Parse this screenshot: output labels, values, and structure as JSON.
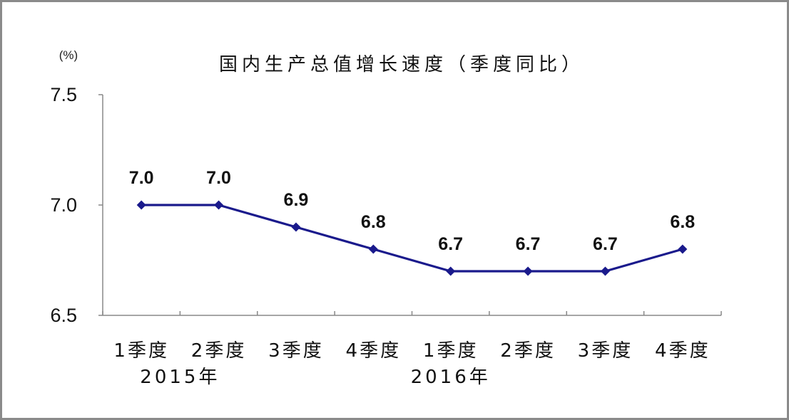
{
  "chart_data": {
    "type": "line",
    "title": "国内生产总值增长速度（季度同比）",
    "unit_label": "(%)",
    "categories": [
      "1季度",
      "2季度",
      "3季度",
      "4季度",
      "1季度",
      "2季度",
      "3季度",
      "4季度"
    ],
    "groups": [
      {
        "label": "2015年",
        "start": 0,
        "end": 1
      },
      {
        "label": "2016年",
        "start": 4,
        "end": 4
      }
    ],
    "series": [
      {
        "values": [
          7.0,
          7.0,
          6.9,
          6.8,
          6.7,
          6.7,
          6.7,
          6.8
        ],
        "data_labels": [
          "7.0",
          "7.0",
          "6.9",
          "6.8",
          "6.7",
          "6.7",
          "6.7",
          "6.8"
        ],
        "color": "#1a1a8c"
      }
    ],
    "y_ticks": [
      6.5,
      7.0,
      7.5
    ],
    "y_tick_labels": [
      "6.5",
      "7.0",
      "7.5"
    ],
    "ylim": [
      6.5,
      7.5
    ],
    "grid": false,
    "marker": "diamond"
  }
}
